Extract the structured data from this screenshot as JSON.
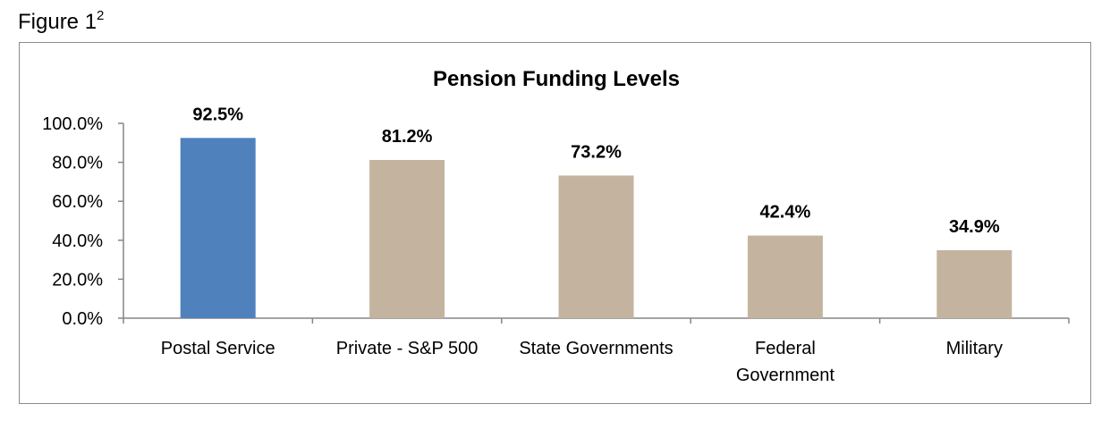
{
  "figure": {
    "caption": "Figure 1",
    "superscript": "2"
  },
  "colors": {
    "highlight_bar": "#4f81bd",
    "other_bars": "#c4b49f",
    "axis": "#868686",
    "frame": "#8c8c8c"
  },
  "chart_data": {
    "type": "bar",
    "title": "Pension Funding Levels",
    "xlabel": "",
    "ylabel": "",
    "ylim": [
      0,
      100
    ],
    "yticks": [
      "0.0%",
      "20.0%",
      "40.0%",
      "60.0%",
      "80.0%",
      "100.0%"
    ],
    "grid": false,
    "legend": "none",
    "categories": [
      [
        "Postal Service"
      ],
      [
        "Private - S&P 500"
      ],
      [
        "State Governments"
      ],
      [
        "Federal",
        "Government"
      ],
      [
        "Military"
      ]
    ],
    "values": [
      92.5,
      81.2,
      73.2,
      42.4,
      34.9
    ],
    "data_labels": [
      "92.5%",
      "81.2%",
      "73.2%",
      "42.4%",
      "34.9%"
    ],
    "highlighted_index": 0
  }
}
